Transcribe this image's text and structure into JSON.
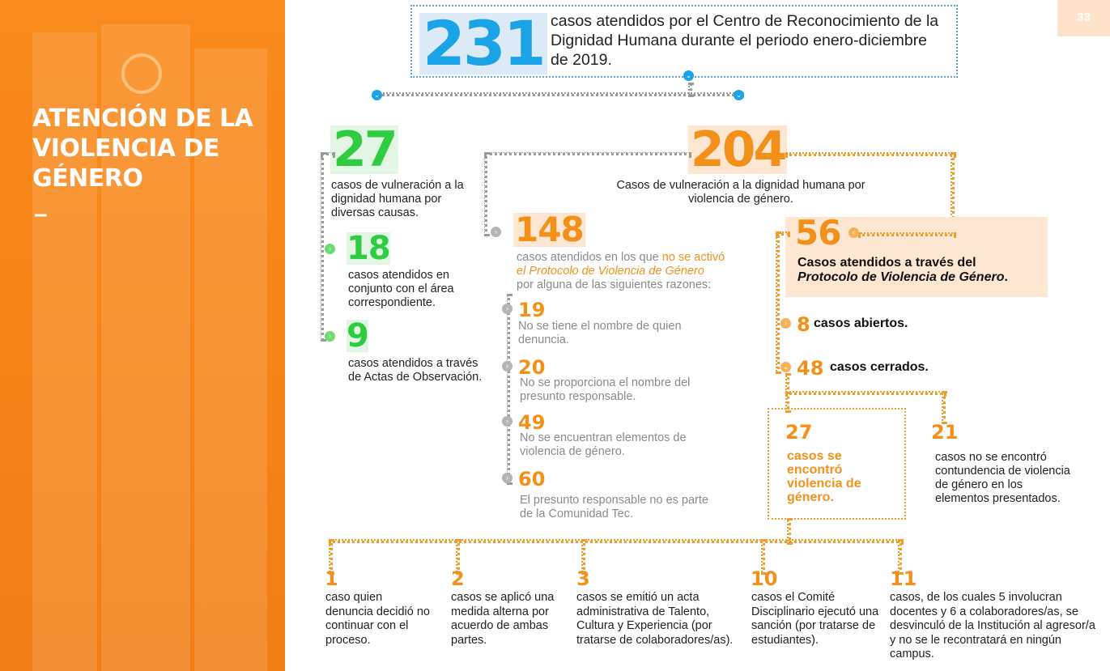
{
  "page_number": "33",
  "sidebar": {
    "title": "ATENCIÓN DE LA VIOLENCIA DE GÉNERO",
    "dash": "–"
  },
  "header": {
    "total": "231",
    "text": "casos atendidos por el Centro de Reconocimiento de la Dignidad Humana durante el periodo enero-diciembre de 2019."
  },
  "left": {
    "total": "27",
    "text": "casos de vulneración a la dignidad humana por diversas causas.",
    "items": [
      {
        "num": "18",
        "text": "casos atendidos en conjunto con el área correspondiente."
      },
      {
        "num": "9",
        "text": "casos atendidos a través de Actas de Observación."
      }
    ]
  },
  "center": {
    "total": "204",
    "text": "Casos de vulneración a la dignidad humana por violencia de género.",
    "not_activated": {
      "num": "148",
      "text_before": "casos atendidos en los que ",
      "text_highlight": "no se activó",
      "text_italic": "el Protocolo de Violencia de Género",
      "text_after": "por alguna de las siguientes razones:",
      "reasons": [
        {
          "num": "19",
          "text": "No se tiene el nombre de quien denuncia."
        },
        {
          "num": "20",
          "text": "No se proporciona el nombre del presunto responsable."
        },
        {
          "num": "49",
          "text": "No se encuentran elementos de violencia de género."
        },
        {
          "num": "60",
          "text": "El presunto responsable no es parte de la Comunidad Tec."
        }
      ]
    }
  },
  "protocol": {
    "num": "56",
    "text_plain": "Casos atendidos a través del",
    "text_italic": "Protocolo de Violencia de Género",
    "text_end": ".",
    "open": {
      "num": "8",
      "text": "casos abiertos."
    },
    "closed": {
      "num": "48",
      "text": "casos cerrados."
    },
    "found": {
      "num": "27",
      "text": "casos se encontró violencia de género."
    },
    "not_found": {
      "num": "21",
      "text": "casos no se encontró contundencia de violencia de género en los elementos presentados."
    }
  },
  "outcomes": [
    {
      "num": "1",
      "text": "caso quien denuncia decidió no continuar con el proceso."
    },
    {
      "num": "2",
      "text": "casos se aplicó una medida alterna por acuerdo de ambas partes."
    },
    {
      "num": "3",
      "text": "casos se emitió un acta administrativa de Talento, Cultura y Experiencia (por tratarse de colaboradores/as)."
    },
    {
      "num": "10",
      "text": "casos el Comité Disciplinario ejecutó una sanción (por tratarse de estudiantes)."
    },
    {
      "num": "11",
      "text": "casos, de los cuales 5 involucran docentes y 6 a colaboradores/as, se desvinculó de la Institución al agresor/a y no se le recontratará en ningún campus."
    }
  ],
  "colors": {
    "orange": "#f39019",
    "blue": "#1aa3e6",
    "green": "#2ecc40",
    "gray": "#8a8a8a",
    "side": "#f78519"
  },
  "icons": {
    "bullet": "chevron-right-icon",
    "connector": "chevron-down-icon"
  }
}
